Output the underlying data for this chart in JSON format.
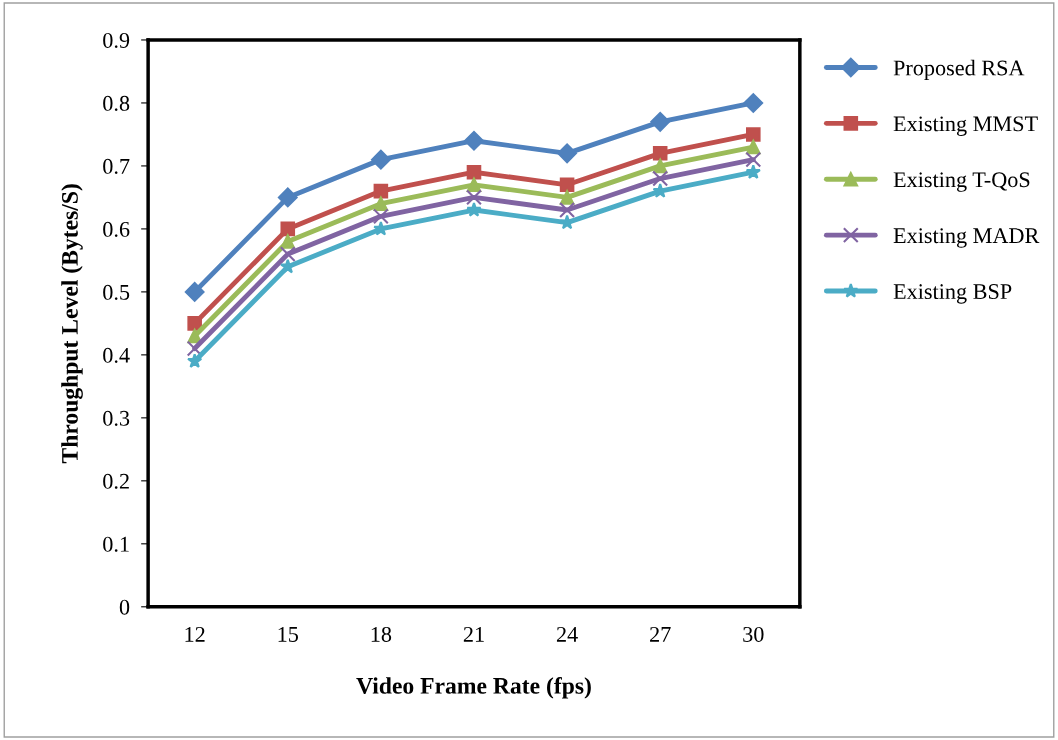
{
  "chart_data": {
    "type": "line",
    "xlabel": "Video Frame Rate (fps)",
    "ylabel": "Throughput Level (Bytes/S)",
    "categories": [
      "12",
      "15",
      "18",
      "21",
      "24",
      "27",
      "30"
    ],
    "series": [
      {
        "name": "Proposed RSA",
        "color": "#4f81bd",
        "marker": "diamond",
        "values": [
          0.5,
          0.65,
          0.71,
          0.74,
          0.72,
          0.77,
          0.8
        ]
      },
      {
        "name": "Existing MMST",
        "color": "#c0504d",
        "marker": "square",
        "values": [
          0.45,
          0.6,
          0.66,
          0.69,
          0.67,
          0.72,
          0.75
        ]
      },
      {
        "name": "Existing T-QoS",
        "color": "#9bbb59",
        "marker": "triangle",
        "values": [
          0.43,
          0.58,
          0.64,
          0.67,
          0.65,
          0.7,
          0.73
        ]
      },
      {
        "name": "Existing MADR",
        "color": "#8064a2",
        "marker": "cross",
        "values": [
          0.41,
          0.56,
          0.62,
          0.65,
          0.63,
          0.68,
          0.71
        ]
      },
      {
        "name": "Existing BSP",
        "color": "#4bacc6",
        "marker": "star",
        "values": [
          0.39,
          0.54,
          0.6,
          0.63,
          0.61,
          0.66,
          0.69
        ]
      }
    ],
    "ylim": [
      0,
      0.9
    ],
    "yticks": [
      0,
      0.1,
      0.2,
      0.3,
      0.4,
      0.5,
      0.6,
      0.7,
      0.8,
      0.9
    ],
    "grid": false,
    "legend": "right",
    "line_style": "solid"
  }
}
